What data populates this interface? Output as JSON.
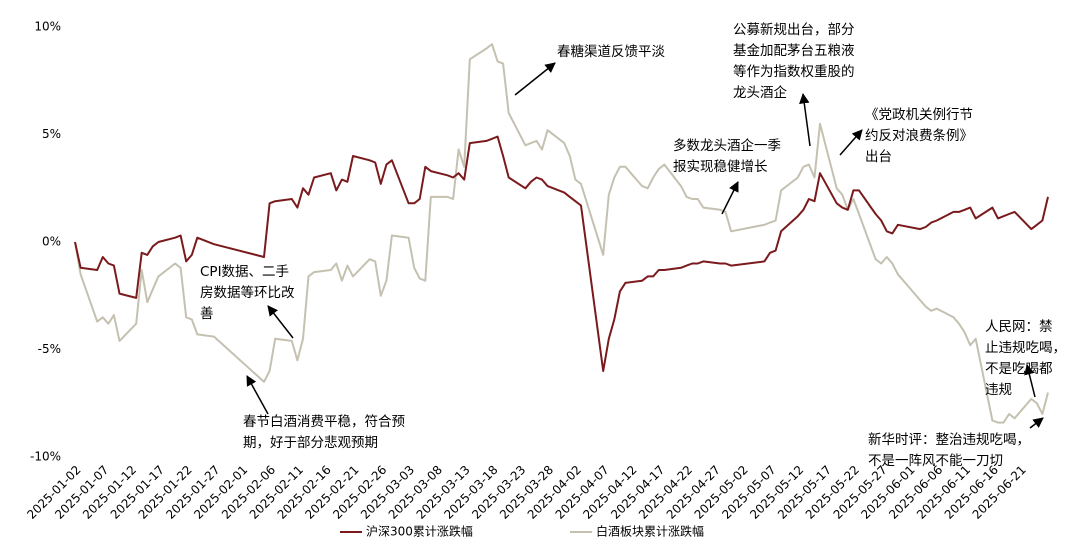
{
  "chart_data": {
    "type": "line",
    "x": [
      "2025-01-02",
      "2025-01-03",
      "2025-01-06",
      "2025-01-07",
      "2025-01-08",
      "2025-01-09",
      "2025-01-10",
      "2025-01-13",
      "2025-01-14",
      "2025-01-15",
      "2025-01-16",
      "2025-01-17",
      "2025-01-20",
      "2025-01-21",
      "2025-01-22",
      "2025-01-23",
      "2025-01-24",
      "2025-01-27",
      "2025-02-05",
      "2025-02-06",
      "2025-02-07",
      "2025-02-10",
      "2025-02-11",
      "2025-02-12",
      "2025-02-13",
      "2025-02-14",
      "2025-02-17",
      "2025-02-18",
      "2025-02-19",
      "2025-02-20",
      "2025-02-21",
      "2025-02-24",
      "2025-02-25",
      "2025-02-26",
      "2025-02-27",
      "2025-02-28",
      "2025-03-03",
      "2025-03-04",
      "2025-03-05",
      "2025-03-06",
      "2025-03-07",
      "2025-03-10",
      "2025-03-11",
      "2025-03-12",
      "2025-03-13",
      "2025-03-14",
      "2025-03-17",
      "2025-03-18",
      "2025-03-19",
      "2025-03-20",
      "2025-03-21",
      "2025-03-24",
      "2025-03-25",
      "2025-03-26",
      "2025-03-27",
      "2025-03-28",
      "2025-03-31",
      "2025-04-01",
      "2025-04-02",
      "2025-04-03",
      "2025-04-07",
      "2025-04-08",
      "2025-04-09",
      "2025-04-10",
      "2025-04-11",
      "2025-04-14",
      "2025-04-15",
      "2025-04-16",
      "2025-04-17",
      "2025-04-18",
      "2025-04-21",
      "2025-04-22",
      "2025-04-23",
      "2025-04-24",
      "2025-04-25",
      "2025-04-28",
      "2025-04-29",
      "2025-04-30",
      "2025-05-06",
      "2025-05-07",
      "2025-05-08",
      "2025-05-09",
      "2025-05-12",
      "2025-05-13",
      "2025-05-14",
      "2025-05-15",
      "2025-05-16",
      "2025-05-19",
      "2025-05-20",
      "2025-05-21",
      "2025-05-22",
      "2025-05-23",
      "2025-05-26",
      "2025-05-27",
      "2025-05-28",
      "2025-05-29",
      "2025-05-30",
      "2025-06-03",
      "2025-06-04",
      "2025-06-05",
      "2025-06-06",
      "2025-06-09",
      "2025-06-10",
      "2025-06-11",
      "2025-06-12",
      "2025-06-13",
      "2025-06-16",
      "2025-06-17",
      "2025-06-18",
      "2025-06-19",
      "2025-06-20",
      "2025-06-23",
      "2025-06-24",
      "2025-06-25",
      "2025-06-26"
    ],
    "series": [
      {
        "name": "沪深300累计涨跌幅",
        "color": "#7a1a1c",
        "values": [
          0,
          -1.2,
          -1.3,
          -0.7,
          -1.0,
          -1.1,
          -2.4,
          -2.6,
          -0.5,
          -0.6,
          -0.2,
          0.0,
          0.2,
          0.3,
          -0.9,
          -0.6,
          0.2,
          -0.1,
          -0.7,
          1.8,
          1.9,
          2.0,
          1.6,
          2.5,
          2.2,
          3.0,
          3.2,
          2.4,
          2.9,
          2.8,
          4.0,
          3.8,
          3.7,
          2.7,
          3.6,
          3.8,
          1.8,
          1.8,
          2.0,
          3.5,
          3.3,
          3.1,
          3.0,
          3.2,
          2.9,
          4.6,
          4.7,
          4.8,
          4.9,
          4.0,
          3.0,
          2.5,
          2.8,
          3.0,
          2.9,
          2.6,
          2.3,
          2.1,
          1.9,
          1.7,
          -6.0,
          -4.5,
          -3.6,
          -2.3,
          -1.9,
          -1.8,
          -1.6,
          -1.6,
          -1.3,
          -1.3,
          -1.2,
          -1.1,
          -1.0,
          -1.0,
          -0.9,
          -1.0,
          -1.0,
          -1.1,
          -0.9,
          -0.5,
          -0.4,
          0.5,
          1.2,
          1.5,
          2.0,
          1.9,
          3.2,
          1.8,
          1.6,
          1.5,
          2.4,
          2.4,
          1.3,
          1.0,
          0.5,
          0.4,
          0.8,
          0.6,
          0.7,
          0.9,
          1.0,
          1.4,
          1.4,
          1.5,
          1.6,
          1.1,
          1.6,
          1.1,
          1.2,
          1.3,
          1.4,
          0.6,
          0.8,
          1.0,
          2.1
        ]
      },
      {
        "name": "白酒板块累计涨跌幅",
        "color": "#c5c1b1",
        "values": [
          0,
          -1.5,
          -3.7,
          -3.5,
          -3.8,
          -3.4,
          -4.6,
          -3.8,
          -1.3,
          -2.8,
          -2.2,
          -1.6,
          -1.0,
          -1.2,
          -3.5,
          -3.6,
          -4.3,
          -4.4,
          -6.5,
          -6.0,
          -4.5,
          -4.6,
          -5.5,
          -4.5,
          -1.6,
          -1.4,
          -1.3,
          -1.0,
          -1.8,
          -1.1,
          -1.6,
          -0.8,
          -0.9,
          -2.5,
          -1.8,
          0.3,
          0.2,
          -1.2,
          -1.7,
          -1.8,
          2.1,
          2.1,
          2.0,
          4.3,
          3.5,
          8.5,
          9.0,
          9.2,
          8.4,
          8.3,
          6.0,
          4.5,
          4.6,
          4.7,
          4.3,
          5.2,
          4.6,
          4.0,
          2.9,
          2.7,
          -0.6,
          2.2,
          3.0,
          3.5,
          3.5,
          2.6,
          2.5,
          3.0,
          3.4,
          3.6,
          2.6,
          2.1,
          2.0,
          2.0,
          1.6,
          1.5,
          1.4,
          0.5,
          0.8,
          0.9,
          1.0,
          2.4,
          3.0,
          3.5,
          3.6,
          3.0,
          5.5,
          2.5,
          2.2,
          1.5,
          2.0,
          1.3,
          -0.8,
          -1.0,
          -0.7,
          -1.0,
          -1.5,
          -2.7,
          -3.0,
          -3.2,
          -3.1,
          -3.5,
          -3.8,
          -4.2,
          -4.8,
          -4.5,
          -8.3,
          -8.4,
          -8.4,
          -8.0,
          -8.2,
          -7.3,
          -7.5,
          -8.0,
          -7.0
        ]
      }
    ],
    "xlim": [
      "2025-01-02",
      "2025-06-26"
    ],
    "xticks": [
      "2025-01-02",
      "2025-01-07",
      "2025-01-12",
      "2025-01-17",
      "2025-01-22",
      "2025-01-27",
      "2025-02-01",
      "2025-02-06",
      "2025-02-11",
      "2025-02-16",
      "2025-02-21",
      "2025-02-26",
      "2025-03-03",
      "2025-03-08",
      "2025-03-13",
      "2025-03-18",
      "2025-03-23",
      "2025-03-28",
      "2025-04-02",
      "2025-04-07",
      "2025-04-12",
      "2025-04-17",
      "2025-04-22",
      "2025-04-27",
      "2025-05-02",
      "2025-05-07",
      "2025-05-12",
      "2025-05-17",
      "2025-05-22",
      "2025-05-27",
      "2025-06-01",
      "2025-06-06",
      "2025-06-11",
      "2025-06-16",
      "2025-06-21"
    ],
    "ylim": [
      -10,
      10
    ],
    "yticks": [
      {
        "value": -10,
        "label": "-10%"
      },
      {
        "value": -5,
        "label": "-5%"
      },
      {
        "value": 0,
        "label": "0%"
      },
      {
        "value": 5,
        "label": "5%"
      },
      {
        "value": 10,
        "label": "10%"
      }
    ],
    "legend": "bottom",
    "annotations": [
      {
        "lines": [
          "春糖渠道反馈平淡"
        ]
      },
      {
        "lines": [
          "公募新规出台，部分",
          "基金加配茅台五粮液",
          "等作为指数权重股的",
          "龙头酒企"
        ]
      },
      {
        "lines": [
          "多数龙头酒企一季",
          "报实现稳健增长"
        ]
      },
      {
        "lines": [
          "《党政机关例行节",
          "约反对浪费条例》",
          "出台"
        ]
      },
      {
        "lines": [
          "CPI数据、二手",
          "房数据等环比改",
          "善"
        ]
      },
      {
        "lines": [
          "春节白酒消费平稳，符合预",
          "期，好于部分悲观预期"
        ]
      },
      {
        "lines": [
          "人民网：禁",
          "止违规吃喝，",
          "不是吃喝都",
          "违规"
        ]
      },
      {
        "lines": [
          "新华时评：整治违规吃喝，",
          "不是一阵风不能一刀切"
        ]
      }
    ]
  }
}
